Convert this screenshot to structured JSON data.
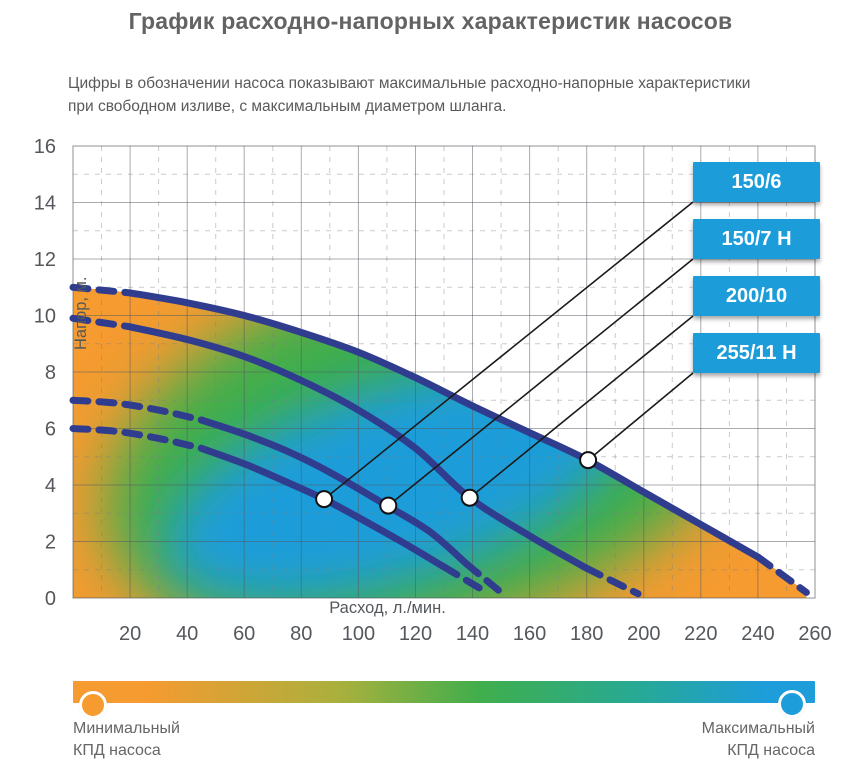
{
  "title": "График расходно-напорных характеристик насосов",
  "subtitle": "Цифры в обозначении насоса показывают максимальные расходно-напорные характеристики\nпри свободном изливе, с максимальным диаметром шланга.",
  "chart_data": {
    "type": "line",
    "xlabel": "Расход, л./мин.",
    "ylabel": "Напор, м.",
    "xlim": [
      0,
      260
    ],
    "ylim": [
      0,
      16
    ],
    "x_ticks": [
      20,
      40,
      60,
      80,
      100,
      120,
      140,
      160,
      180,
      200,
      220,
      240,
      260
    ],
    "y_ticks": [
      0,
      2,
      4,
      6,
      8,
      10,
      12,
      14,
      16
    ],
    "grid": "solid major every 20 l/min and 2 m, dashed minor every 10 l/min and 1 m",
    "curve_color": "#303d8f",
    "leader_line_color": "#1b1b1b",
    "callout_bg_color": "#1c9dd9",
    "series": [
      {
        "name": "150/6",
        "points": [
          [
            0,
            6.0
          ],
          [
            15,
            5.9
          ],
          [
            30,
            5.65
          ],
          [
            45,
            5.3
          ],
          [
            60,
            4.75
          ],
          [
            75,
            4.1
          ],
          [
            88,
            3.5
          ],
          [
            100,
            2.85
          ],
          [
            115,
            2.0
          ],
          [
            130,
            1.1
          ],
          [
            145,
            0.2
          ]
        ],
        "marker": [
          88,
          3.5
        ],
        "head_dash_end_x": 46,
        "tail_dash_start_x": 128
      },
      {
        "name": "150/7 Н",
        "points": [
          [
            0,
            7.0
          ],
          [
            15,
            6.9
          ],
          [
            30,
            6.65
          ],
          [
            45,
            6.3
          ],
          [
            60,
            5.8
          ],
          [
            75,
            5.2
          ],
          [
            90,
            4.45
          ],
          [
            110,
            3.27
          ],
          [
            125,
            2.35
          ],
          [
            138,
            1.2
          ],
          [
            150,
            0.2
          ]
        ],
        "marker": [
          110.5,
          3.27
        ],
        "head_dash_end_x": 46,
        "tail_dash_start_x": 136
      },
      {
        "name": "200/10",
        "points": [
          [
            0,
            9.9
          ],
          [
            20,
            9.6
          ],
          [
            40,
            9.15
          ],
          [
            60,
            8.55
          ],
          [
            80,
            7.7
          ],
          [
            100,
            6.65
          ],
          [
            120,
            5.3
          ],
          [
            139,
            3.55
          ],
          [
            160,
            2.2
          ],
          [
            180,
            1.05
          ],
          [
            198,
            0.15
          ]
        ],
        "marker": [
          139,
          3.55
        ],
        "head_dash_end_x": 30,
        "tail_dash_start_x": 178
      },
      {
        "name": "255/11 Н",
        "points": [
          [
            0,
            11.0
          ],
          [
            20,
            10.8
          ],
          [
            40,
            10.45
          ],
          [
            60,
            10.0
          ],
          [
            80,
            9.4
          ],
          [
            100,
            8.7
          ],
          [
            120,
            7.8
          ],
          [
            140,
            6.8
          ],
          [
            160,
            5.85
          ],
          [
            180,
            4.9
          ],
          [
            200,
            3.75
          ],
          [
            220,
            2.6
          ],
          [
            240,
            1.45
          ],
          [
            257,
            0.2
          ]
        ],
        "marker": [
          180.5,
          4.88
        ],
        "head_dash_end_x": 22,
        "tail_dash_start_x": 238
      }
    ],
    "efficiency_map": {
      "min_color": "#F59B30",
      "mid_color": "#3FAE4C",
      "max_color": "#1D9DD9",
      "description": "background shading from minimum (orange) to maximum (blue) pump efficiency"
    }
  },
  "callouts": [
    {
      "label": "150/6"
    },
    {
      "label": "150/7 Н"
    },
    {
      "label": "200/10"
    },
    {
      "label": "255/11 Н"
    }
  ],
  "legend": {
    "min_label": "Минимальный\nКПД насоса",
    "max_label": "Максимальный\nКПД насоса"
  }
}
